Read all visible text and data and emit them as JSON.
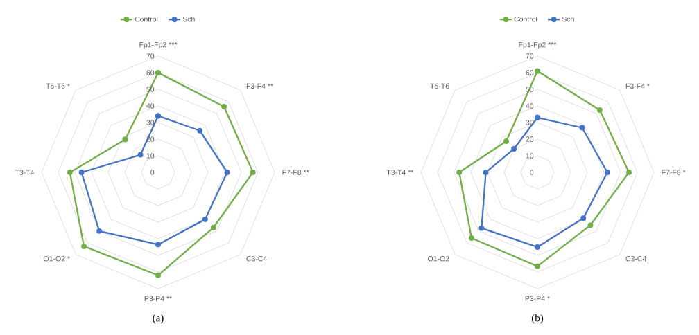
{
  "chart_data": [
    {
      "type": "radar",
      "categories": [
        "Fp1-Fp2 ***",
        "F3-F4 **",
        "F7-F8 **",
        "C3-C4",
        "P3-P4 **",
        "O1-O2 *",
        "T3-T4",
        "T5-T6 *"
      ],
      "series": [
        {
          "name": "Control",
          "color": "#70ad47",
          "values": [
            60,
            56,
            57,
            47,
            62,
            63,
            53,
            28
          ]
        },
        {
          "name": "Sch",
          "color": "#4472c4",
          "values": [
            34,
            35.5,
            41.5,
            40,
            43.5,
            50,
            46,
            15
          ]
        }
      ],
      "ylim": [
        0,
        70
      ],
      "yticks": [
        0,
        10,
        20,
        30,
        40,
        50,
        60,
        70
      ],
      "grid": true,
      "legend": "top",
      "marker": "circle",
      "line_style": "solid",
      "annotations": [
        "(a)"
      ]
    },
    {
      "type": "radar",
      "categories": [
        "Fp1-Fp2 ***",
        "F3-F4 *",
        "F7-F8 *",
        "C3-C4",
        "P3-P4 *",
        "O1-O2",
        "T3-T4 **",
        "T5-T6"
      ],
      "series": [
        {
          "name": "Control",
          "color": "#70ad47",
          "values": [
            61,
            53,
            55,
            45,
            56.5,
            56,
            47,
            26.5
          ]
        },
        {
          "name": "Sch",
          "color": "#4472c4",
          "values": [
            33,
            38,
            42,
            39,
            45,
            47.5,
            31,
            20
          ]
        }
      ],
      "ylim": [
        0,
        70
      ],
      "yticks": [
        0,
        10,
        20,
        30,
        40,
        50,
        60,
        70
      ],
      "grid": true,
      "legend": "top",
      "marker": "circle",
      "line_style": "solid",
      "annotations": [
        "(b)"
      ]
    }
  ]
}
